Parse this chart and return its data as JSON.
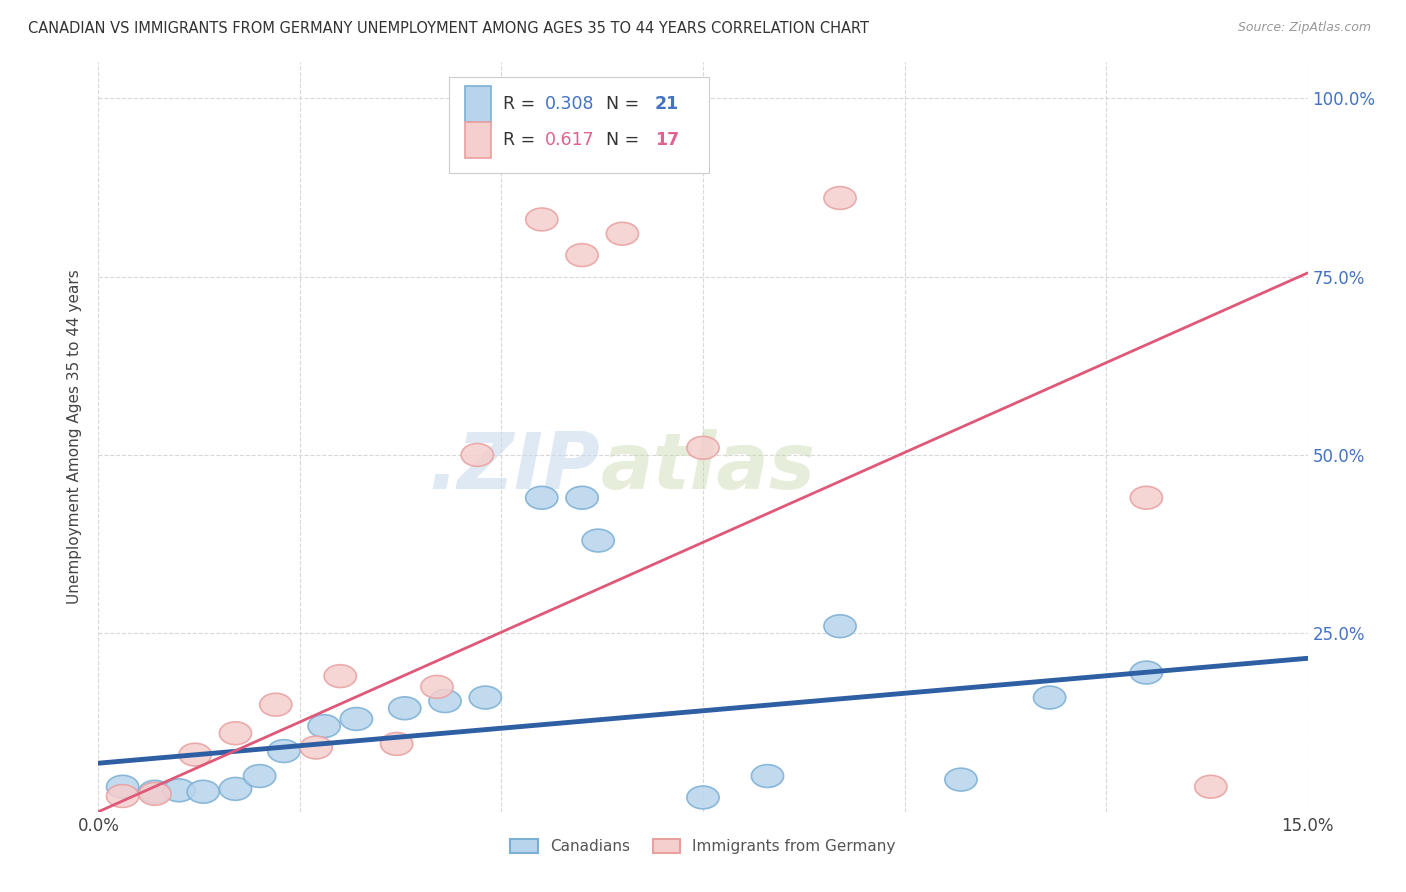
{
  "title": "CANADIAN VS IMMIGRANTS FROM GERMANY UNEMPLOYMENT AMONG AGES 35 TO 44 YEARS CORRELATION CHART",
  "source": "Source: ZipAtlas.com",
  "ylabel": "Unemployment Among Ages 35 to 44 years",
  "xlim": [
    0.0,
    0.15
  ],
  "ylim": [
    0.0,
    1.05
  ],
  "xticks": [
    0.0,
    0.025,
    0.05,
    0.075,
    0.1,
    0.125,
    0.15
  ],
  "xticklabels": [
    "0.0%",
    "",
    "",
    "",
    "",
    "",
    "15.0%"
  ],
  "ytick_positions": [
    0.0,
    0.25,
    0.5,
    0.75,
    1.0
  ],
  "ytick_labels_right": [
    "",
    "25.0%",
    "50.0%",
    "75.0%",
    "100.0%"
  ],
  "canadians_x": [
    0.003,
    0.007,
    0.01,
    0.013,
    0.017,
    0.02,
    0.023,
    0.028,
    0.032,
    0.038,
    0.043,
    0.048,
    0.055,
    0.06,
    0.062,
    0.075,
    0.083,
    0.092,
    0.107,
    0.118,
    0.13
  ],
  "canadians_y": [
    0.035,
    0.028,
    0.03,
    0.028,
    0.032,
    0.05,
    0.085,
    0.12,
    0.13,
    0.145,
    0.155,
    0.16,
    0.44,
    0.44,
    0.38,
    0.02,
    0.05,
    0.26,
    0.045,
    0.16,
    0.195
  ],
  "germany_x": [
    0.003,
    0.007,
    0.012,
    0.017,
    0.022,
    0.027,
    0.03,
    0.037,
    0.042,
    0.047,
    0.055,
    0.06,
    0.065,
    0.075,
    0.092,
    0.13,
    0.138
  ],
  "germany_y": [
    0.022,
    0.025,
    0.08,
    0.11,
    0.15,
    0.09,
    0.19,
    0.095,
    0.175,
    0.5,
    0.83,
    0.78,
    0.81,
    0.51,
    0.86,
    0.44,
    0.035
  ],
  "canadian_color": "#7bafd4",
  "canada_fill": "#b8d4ec",
  "germany_color": "#e8a0a0",
  "germany_fill": "#f5cece",
  "trend_canada_color": "#2e5fa3",
  "trend_germany_color": "#e05878",
  "trend_canada_x0": 0.0,
  "trend_canada_y0": 0.068,
  "trend_canada_x1": 0.15,
  "trend_canada_y1": 0.215,
  "trend_germany_x0": 0.0,
  "trend_germany_y0": 0.0,
  "trend_germany_x1": 0.15,
  "trend_germany_y1": 0.755,
  "r_canada": "0.308",
  "n_canada": "21",
  "r_germany": "0.617",
  "n_germany": "17",
  "watermark_zip": ".ZIP",
  "watermark_atlas": "atlas",
  "background_color": "#ffffff",
  "grid_color": "#d8d8d8",
  "legend_r_color": "#4472c4",
  "legend_r_germany_color": "#e06090"
}
